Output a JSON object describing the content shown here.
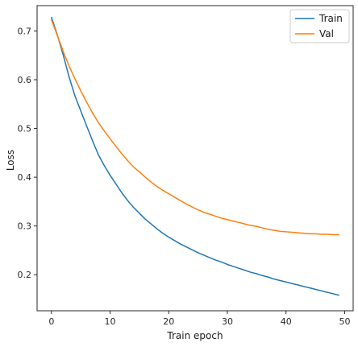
{
  "chart_data": {
    "type": "line",
    "xlabel": "Train epoch",
    "ylabel": "Loss",
    "xlim": [
      -2.45,
      51.45
    ],
    "ylim": [
      0.126,
      0.752
    ],
    "xticks": [
      0,
      10,
      20,
      30,
      40,
      50
    ],
    "yticks": [
      0.2,
      0.3,
      0.4,
      0.5,
      0.6,
      0.7
    ],
    "ytick_labels": [
      "0.2",
      "0.3",
      "0.4",
      "0.5",
      "0.6",
      "0.7"
    ],
    "grid": false,
    "legend_position": "top-right",
    "x": [
      0,
      1,
      2,
      3,
      4,
      5,
      6,
      7,
      8,
      9,
      10,
      11,
      12,
      13,
      14,
      15,
      16,
      17,
      18,
      19,
      20,
      21,
      22,
      23,
      24,
      25,
      26,
      27,
      28,
      29,
      30,
      31,
      32,
      33,
      34,
      35,
      36,
      37,
      38,
      39,
      40,
      41,
      42,
      43,
      44,
      45,
      46,
      47,
      48,
      49
    ],
    "series": [
      {
        "name": "Train",
        "color": "#1f77b4",
        "values": [
          0.728,
          0.692,
          0.651,
          0.606,
          0.567,
          0.536,
          0.505,
          0.475,
          0.446,
          0.424,
          0.404,
          0.386,
          0.368,
          0.352,
          0.338,
          0.326,
          0.314,
          0.304,
          0.294,
          0.285,
          0.277,
          0.27,
          0.263,
          0.257,
          0.251,
          0.245,
          0.24,
          0.235,
          0.23,
          0.226,
          0.221,
          0.217,
          0.213,
          0.209,
          0.205,
          0.202,
          0.198,
          0.195,
          0.191,
          0.188,
          0.185,
          0.182,
          0.179,
          0.176,
          0.173,
          0.17,
          0.167,
          0.164,
          0.161,
          0.158
        ]
      },
      {
        "name": "Val",
        "color": "#ff7f0e",
        "values": [
          0.723,
          0.691,
          0.658,
          0.628,
          0.602,
          0.577,
          0.554,
          0.532,
          0.512,
          0.495,
          0.479,
          0.463,
          0.448,
          0.434,
          0.421,
          0.411,
          0.4,
          0.39,
          0.381,
          0.373,
          0.366,
          0.359,
          0.352,
          0.345,
          0.339,
          0.333,
          0.328,
          0.324,
          0.32,
          0.316,
          0.313,
          0.31,
          0.307,
          0.304,
          0.301,
          0.299,
          0.296,
          0.293,
          0.291,
          0.289,
          0.288,
          0.287,
          0.286,
          0.285,
          0.284,
          0.284,
          0.283,
          0.283,
          0.282,
          0.282
        ]
      }
    ]
  }
}
